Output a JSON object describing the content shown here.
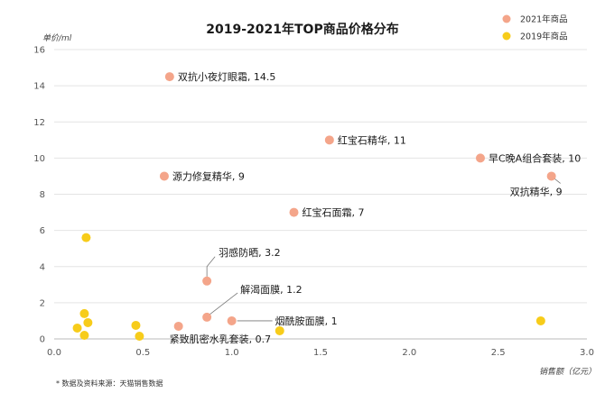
{
  "chart_data": {
    "type": "scatter",
    "title": "2019-2021年TOP商品价格分布",
    "xlabel": "销售额（亿元）",
    "ylabel": "单价/ml",
    "xlim": [
      0,
      3.0
    ],
    "ylim": [
      0,
      16
    ],
    "x_ticks": [
      "0.0",
      "0.5",
      "1.0",
      "1.5",
      "2.0",
      "2.5",
      "3.0"
    ],
    "y_ticks": [
      "0",
      "2",
      "4",
      "6",
      "8",
      "10",
      "12",
      "14",
      "16"
    ],
    "grid": "horizontal",
    "legend_position": "top-right",
    "series": [
      {
        "name": "2021年商品",
        "color": "#F4A58A",
        "points": [
          {
            "x": 0.65,
            "y": 14.5,
            "label": "双抗小夜灯眼霜, 14.5"
          },
          {
            "x": 1.55,
            "y": 11,
            "label": "红宝石精华, 11"
          },
          {
            "x": 2.4,
            "y": 10,
            "label": "早C晚A组合套装, 10"
          },
          {
            "x": 2.8,
            "y": 9,
            "label": "双抗精华, 9"
          },
          {
            "x": 0.62,
            "y": 9,
            "label": "源力修复精华, 9"
          },
          {
            "x": 1.35,
            "y": 7,
            "label": "红宝石面霜, 7"
          },
          {
            "x": 0.86,
            "y": 3.2,
            "label": "羽感防晒, 3.2"
          },
          {
            "x": 0.86,
            "y": 1.2,
            "label": "解渴面膜, 1.2"
          },
          {
            "x": 1.0,
            "y": 1.0,
            "label": "烟酰胺面膜, 1"
          },
          {
            "x": 0.7,
            "y": 0.7,
            "label": "紧致肌密水乳套装, 0.7"
          }
        ]
      },
      {
        "name": "2019年商品",
        "color": "#F7CC1A",
        "points": [
          {
            "x": 0.18,
            "y": 5.6
          },
          {
            "x": 0.17,
            "y": 1.4
          },
          {
            "x": 0.19,
            "y": 0.9
          },
          {
            "x": 0.13,
            "y": 0.6
          },
          {
            "x": 0.17,
            "y": 0.2
          },
          {
            "x": 0.46,
            "y": 0.75
          },
          {
            "x": 0.48,
            "y": 0.15
          },
          {
            "x": 1.27,
            "y": 0.45
          },
          {
            "x": 2.74,
            "y": 1.0
          }
        ]
      }
    ],
    "source_note": "* 数据及资料来源：天猫销售数据"
  }
}
